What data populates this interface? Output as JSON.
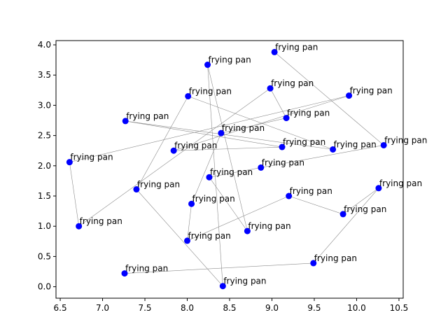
{
  "chart_data": {
    "type": "scatter",
    "title": "",
    "xlabel": "",
    "ylabel": "",
    "xlim": [
      6.45,
      10.55
    ],
    "ylim": [
      -0.19,
      4.07
    ],
    "x_ticks": [
      6.5,
      7.0,
      7.5,
      8.0,
      8.5,
      9.0,
      9.5,
      10.0,
      10.5
    ],
    "x_tick_labels": [
      "6.5",
      "7.0",
      "7.5",
      "8.0",
      "8.5",
      "9.0",
      "9.5",
      "10.0",
      "10.5"
    ],
    "y_ticks": [
      0.0,
      0.5,
      1.0,
      1.5,
      2.0,
      2.5,
      3.0,
      3.5,
      4.0
    ],
    "y_tick_labels": [
      "0.0",
      "0.5",
      "1.0",
      "1.5",
      "2.0",
      "2.5",
      "3.0",
      "3.5",
      "4.0"
    ],
    "grid": false,
    "marker_color": "#0000ff",
    "line_color": "#8c8c8c",
    "points": [
      {
        "x": 9.03,
        "y": 3.88,
        "label": "frying pan"
      },
      {
        "x": 10.32,
        "y": 2.34,
        "label": "frying pan"
      },
      {
        "x": 8.87,
        "y": 1.97,
        "label": "frying pan"
      },
      {
        "x": 8.26,
        "y": 1.81,
        "label": "frying pan"
      },
      {
        "x": 8.71,
        "y": 0.92,
        "label": "frying pan"
      },
      {
        "x": 8.24,
        "y": 3.67,
        "label": "frying pan"
      },
      {
        "x": 8.42,
        "y": 0.01,
        "label": "frying pan"
      },
      {
        "x": 7.4,
        "y": 1.61,
        "label": "frying pan"
      },
      {
        "x": 8.01,
        "y": 3.15,
        "label": "frying pan"
      },
      {
        "x": 9.72,
        "y": 2.27,
        "label": "frying pan"
      },
      {
        "x": 7.27,
        "y": 2.74,
        "label": "frying pan"
      },
      {
        "x": 9.12,
        "y": 2.31,
        "label": "frying pan"
      },
      {
        "x": 7.84,
        "y": 2.25,
        "label": "frying pan"
      },
      {
        "x": 9.91,
        "y": 3.16,
        "label": "frying pan"
      },
      {
        "x": 6.61,
        "y": 2.06,
        "label": "frying pan"
      },
      {
        "x": 6.72,
        "y": 1.0,
        "label": "frying pan"
      },
      {
        "x": 8.98,
        "y": 3.28,
        "label": "frying pan"
      },
      {
        "x": 9.17,
        "y": 2.79,
        "label": "frying pan"
      },
      {
        "x": 8.4,
        "y": 2.54,
        "label": "frying pan"
      },
      {
        "x": 8.05,
        "y": 1.37,
        "label": "frying pan"
      },
      {
        "x": 8.0,
        "y": 0.76,
        "label": "frying pan"
      },
      {
        "x": 9.2,
        "y": 1.5,
        "label": "frying pan"
      },
      {
        "x": 9.84,
        "y": 1.2,
        "label": "frying pan"
      },
      {
        "x": 10.26,
        "y": 1.63,
        "label": "frying pan"
      },
      {
        "x": 9.49,
        "y": 0.39,
        "label": "frying pan"
      },
      {
        "x": 7.26,
        "y": 0.22,
        "label": "frying pan"
      }
    ],
    "path_order": [
      0,
      1,
      2,
      3,
      4,
      5,
      6,
      7,
      8,
      9,
      10,
      11,
      12,
      13,
      14,
      15,
      16,
      17,
      18,
      19,
      20,
      21,
      22,
      23,
      24,
      25
    ]
  }
}
